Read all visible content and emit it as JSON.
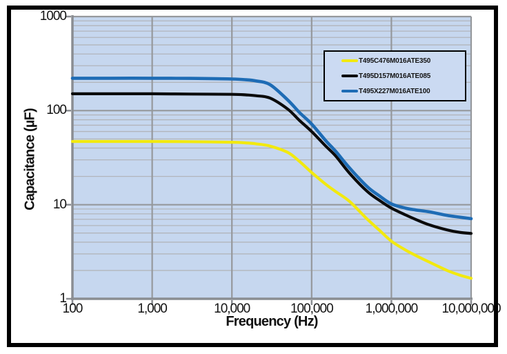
{
  "chart_data": {
    "type": "line",
    "title": "",
    "xlabel": "Frequency (Hz)",
    "ylabel": "Capacitance (µF)",
    "x_scale": "log",
    "y_scale": "log",
    "xlim": [
      100,
      10000000
    ],
    "ylim": [
      1,
      1000
    ],
    "x_tick_values": [
      100,
      1000,
      10000,
      100000,
      1000000,
      10000000
    ],
    "x_tick_labels": [
      "100",
      "1,000",
      "10,000",
      "100,000",
      "1,000,000",
      "10,000,000"
    ],
    "y_tick_values": [
      1,
      10,
      100,
      1000
    ],
    "y_tick_labels": [
      "1",
      "10",
      "100",
      "1000"
    ],
    "grid": {
      "horizontal": "major+minor",
      "vertical": "major-only"
    },
    "legend_position": "top-right-inside",
    "series": [
      {
        "name": "T495C476M016ATE350",
        "color": "#f2e90f",
        "nominal_uF": 47,
        "points": [
          [
            100,
            47
          ],
          [
            300,
            47
          ],
          [
            1000,
            47
          ],
          [
            3000,
            46.8
          ],
          [
            10000,
            46.2
          ],
          [
            15000,
            45.4
          ],
          [
            20000,
            44.4
          ],
          [
            30000,
            42
          ],
          [
            50000,
            36
          ],
          [
            70000,
            29
          ],
          [
            100000,
            22
          ],
          [
            150000,
            16.5
          ],
          [
            200000,
            13.8
          ],
          [
            300000,
            10.8
          ],
          [
            500000,
            7.0
          ],
          [
            700000,
            5.4
          ],
          [
            1000000,
            4.1
          ],
          [
            1500000,
            3.3
          ],
          [
            2000000,
            2.9
          ],
          [
            3000000,
            2.45
          ],
          [
            5000000,
            2.0
          ],
          [
            7000000,
            1.8
          ],
          [
            10000000,
            1.65
          ]
        ]
      },
      {
        "name": "T495D157M016ATE085",
        "color": "#0b0b0b",
        "nominal_uF": 150,
        "points": [
          [
            100,
            151
          ],
          [
            300,
            151
          ],
          [
            1000,
            151
          ],
          [
            3000,
            150
          ],
          [
            10000,
            149
          ],
          [
            15000,
            147
          ],
          [
            20000,
            144
          ],
          [
            30000,
            136
          ],
          [
            50000,
            104
          ],
          [
            70000,
            79
          ],
          [
            100000,
            60
          ],
          [
            150000,
            42
          ],
          [
            200000,
            33
          ],
          [
            300000,
            21.5
          ],
          [
            500000,
            13.8
          ],
          [
            700000,
            11.2
          ],
          [
            1000000,
            9.2
          ],
          [
            1500000,
            7.8
          ],
          [
            2000000,
            7.0
          ],
          [
            3000000,
            6.1
          ],
          [
            5000000,
            5.4
          ],
          [
            7000000,
            5.1
          ],
          [
            10000000,
            4.95
          ]
        ]
      },
      {
        "name": "T495X227M016ATE100",
        "color": "#1e6cb5",
        "nominal_uF": 220,
        "points": [
          [
            100,
            221
          ],
          [
            300,
            221
          ],
          [
            1000,
            221
          ],
          [
            3000,
            220
          ],
          [
            10000,
            217
          ],
          [
            15000,
            213
          ],
          [
            20000,
            207
          ],
          [
            30000,
            189
          ],
          [
            50000,
            130
          ],
          [
            70000,
            96
          ],
          [
            100000,
            72
          ],
          [
            150000,
            48
          ],
          [
            200000,
            37
          ],
          [
            300000,
            24.5
          ],
          [
            500000,
            15.5
          ],
          [
            700000,
            12.5
          ],
          [
            1000000,
            10.2
          ],
          [
            1500000,
            9.2
          ],
          [
            2000000,
            8.8
          ],
          [
            3000000,
            8.4
          ],
          [
            5000000,
            7.7
          ],
          [
            7000000,
            7.4
          ],
          [
            10000000,
            7.1
          ]
        ]
      }
    ]
  },
  "colors": {
    "plot_bg": "#c6d7ef",
    "grid_minor": "#b2b5bb",
    "grid_major": "#95989c",
    "axis": "#8a8d92",
    "frame": "#000000",
    "legend_bg": "#cbdaf2",
    "legend_border": "#000000",
    "text": "#131313"
  }
}
